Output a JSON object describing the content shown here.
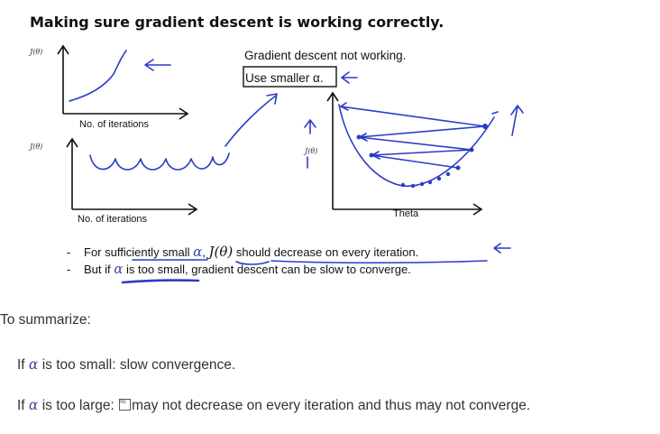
{
  "slide": {
    "title": "Making sure gradient descent is working correctly.",
    "plot1": {
      "ylabel": "J(θ)",
      "xlabel": "No. of iterations"
    },
    "plot2": {
      "ylabel": "J(θ)",
      "xlabel": "No. of iterations"
    },
    "plot3": {
      "ylabel": "J(θ)",
      "xlabel": "Theta"
    },
    "note_line1": "Gradient descent not working.",
    "note_line2": "Use smaller α.",
    "bullet1": {
      "prefix": "For sufficiently small ",
      "alpha": "α",
      "sep": ", ",
      "j": "J(θ)",
      "suffix": " should decrease on every iteration."
    },
    "bullet2": {
      "prefix": "But if ",
      "alpha": "α",
      "suffix": " is too small, gradient descent can be slow to converge."
    }
  },
  "summary": {
    "heading": "To summarize:",
    "line1": {
      "prefix": "If ",
      "alpha": "α",
      "suffix": " is too small: slow convergence."
    },
    "line2": {
      "prefix": "If ",
      "alpha": "α",
      "middle": " is too large: ",
      "glyph": "0E 0E",
      "suffix": "may not decrease on every iteration and thus may not converge."
    }
  },
  "colors": {
    "ink": "#2a3cc7",
    "text": "#333333"
  }
}
